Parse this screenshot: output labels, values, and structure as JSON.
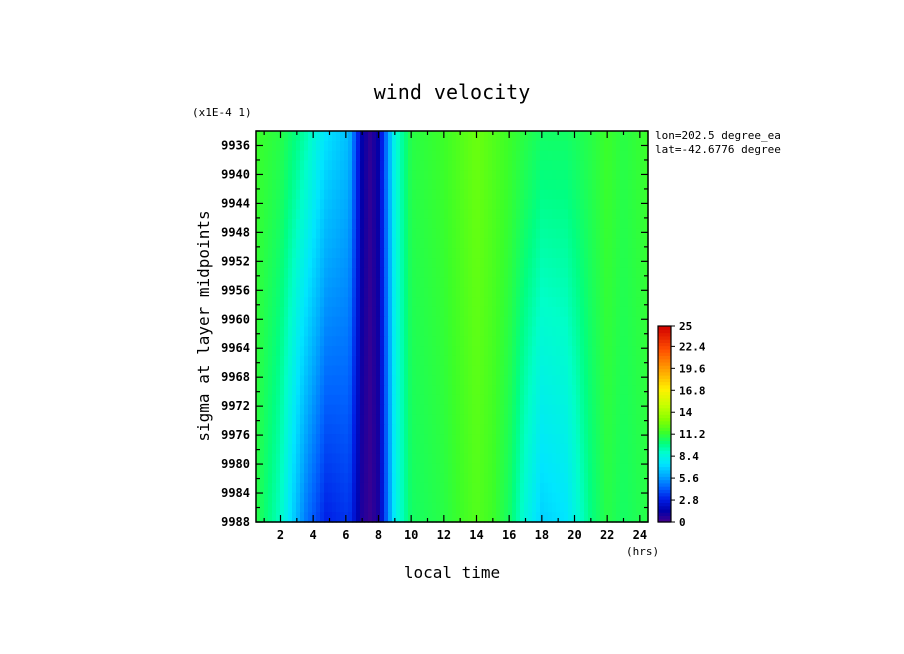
{
  "chart_data": {
    "type": "heatmap",
    "title": "wind velocity",
    "xlabel": "local time",
    "x_units": "(hrs)",
    "ylabel": "sigma at layer midpoints",
    "y_multiplier": "(x1E-4 1)",
    "annotations": [
      "lon=202.5 degree_ea",
      "lat=-42.6776 degree"
    ],
    "xlim": [
      0.5,
      24.5
    ],
    "ylim": [
      9988,
      9934
    ],
    "x_ticks": [
      "2",
      "4",
      "6",
      "8",
      "10",
      "12",
      "14",
      "16",
      "18",
      "20",
      "22",
      "24"
    ],
    "y_ticks": [
      "9936",
      "9940",
      "9944",
      "9948",
      "9952",
      "9956",
      "9960",
      "9964",
      "9968",
      "9972",
      "9976",
      "9980",
      "9984",
      "9988"
    ],
    "colorbar": {
      "min": 0,
      "max": 25,
      "ticks": [
        "25",
        "22.4",
        "19.6",
        "16.8",
        "14",
        "11.2",
        "8.4",
        "5.6",
        "2.8",
        "0"
      ]
    },
    "x": [
      0.5,
      2.0,
      3.5,
      4.8,
      6.2,
      7.0,
      7.5,
      8.0,
      9.0,
      10.0,
      12.0,
      14.0,
      15.0,
      16.0,
      17.0,
      18.0,
      19.5,
      21.0,
      22.0,
      23.0,
      24.5
    ],
    "values_top": [
      11.5,
      11.0,
      9.5,
      7.5,
      6.5,
      1.5,
      0.5,
      1.5,
      8.5,
      11.0,
      11.5,
      12.5,
      12.0,
      11.5,
      11.0,
      10.5,
      10.5,
      11.0,
      11.5,
      11.0,
      11.5
    ],
    "values_bottom": [
      11.0,
      9.0,
      5.0,
      3.0,
      3.5,
      0.8,
      0.3,
      1.0,
      8.0,
      10.5,
      11.0,
      12.0,
      11.5,
      10.5,
      8.5,
      7.0,
      7.5,
      10.0,
      11.0,
      10.5,
      11.0
    ]
  }
}
